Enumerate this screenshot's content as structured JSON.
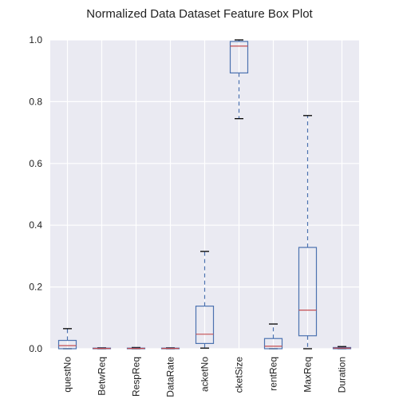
{
  "chart_data": {
    "type": "box",
    "title": "Normalized Data Dataset Feature Box Plot",
    "xlabel": "",
    "ylabel": "",
    "ylim": [
      0.0,
      1.0
    ],
    "yticks": [
      "0.0",
      "0.2",
      "0.4",
      "0.6",
      "0.8",
      "1.0"
    ],
    "grid": true,
    "categories": [
      "questNo",
      "BetwReq",
      "RespReq",
      "DataRate",
      "acketNo",
      "cketSize",
      "rentReq",
      "MaxReq",
      "Duration"
    ],
    "boxes": [
      {
        "whislo": 0.0,
        "q1": 0.0,
        "med": 0.01,
        "q3": 0.027,
        "whishi": 0.065
      },
      {
        "whislo": 0.0,
        "q1": 0.0,
        "med": 0.001,
        "q3": 0.002,
        "whishi": 0.003
      },
      {
        "whislo": 0.0,
        "q1": 0.0,
        "med": 0.001,
        "q3": 0.002,
        "whishi": 0.004
      },
      {
        "whislo": 0.0,
        "q1": 0.0,
        "med": 0.001,
        "q3": 0.002,
        "whishi": 0.003
      },
      {
        "whislo": 0.002,
        "q1": 0.017,
        "med": 0.047,
        "q3": 0.138,
        "whishi": 0.315
      },
      {
        "whislo": 0.745,
        "q1": 0.893,
        "med": 0.98,
        "q3": 0.995,
        "whishi": 1.0
      },
      {
        "whislo": 0.0,
        "q1": 0.0,
        "med": 0.008,
        "q3": 0.033,
        "whishi": 0.08
      },
      {
        "whislo": 0.0,
        "q1": 0.042,
        "med": 0.125,
        "q3": 0.328,
        "whishi": 0.755
      },
      {
        "whislo": 0.0,
        "q1": 0.0,
        "med": 0.002,
        "q3": 0.004,
        "whishi": 0.007
      }
    ],
    "colors": {
      "background": "#eaeaf2",
      "grid": "#ffffff",
      "box": "#4c72b0",
      "median": "#c44e52",
      "cap": "#000000"
    }
  }
}
